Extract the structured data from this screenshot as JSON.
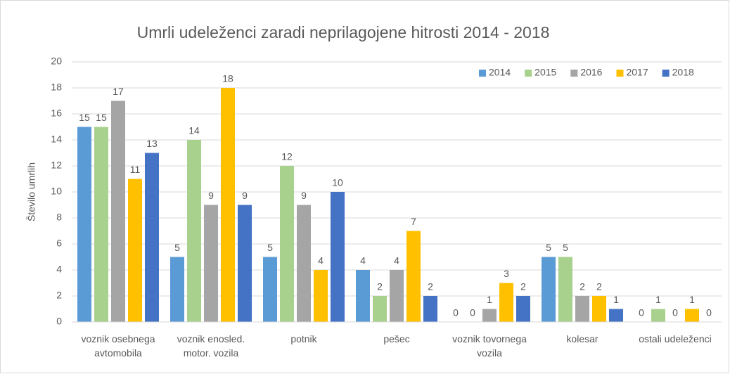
{
  "chart_data": {
    "type": "bar",
    "title": "Umrli udeleženci  zaradi neprilagojene hitrosti 2014 - 2018",
    "y_label": "Število umrlih",
    "categories": [
      "voznik osebnega avtomobila",
      "voznik enosled. motor. vozila",
      "potnik",
      "pešec",
      "voznik tovornega vozila",
      "kolesar",
      "ostali udeleženci"
    ],
    "series": [
      {
        "name": "2014",
        "color": "#5b9bd5",
        "values": [
          15,
          5,
          5,
          4,
          0,
          5,
          0
        ]
      },
      {
        "name": "2015",
        "color": "#a9d18e",
        "values": [
          15,
          14,
          12,
          2,
          0,
          5,
          1
        ]
      },
      {
        "name": "2016",
        "color": "#a5a5a5",
        "values": [
          17,
          9,
          9,
          4,
          1,
          2,
          0
        ]
      },
      {
        "name": "2017",
        "color": "#ffc000",
        "values": [
          11,
          18,
          4,
          7,
          3,
          2,
          1
        ]
      },
      {
        "name": "2018",
        "color": "#4472c4",
        "values": [
          13,
          9,
          10,
          2,
          2,
          1,
          0
        ]
      }
    ],
    "ylim": [
      0,
      20
    ],
    "yticks": [
      0,
      2,
      4,
      6,
      8,
      10,
      12,
      14,
      16,
      18,
      20
    ],
    "grid": true,
    "legend": "top-right"
  }
}
